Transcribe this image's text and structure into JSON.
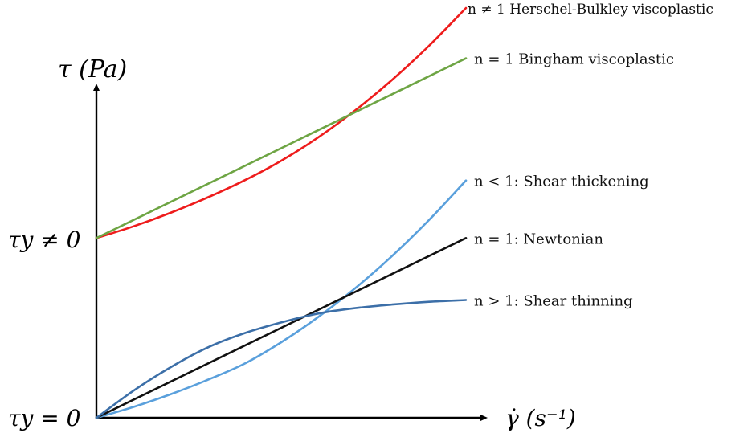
{
  "chart_data": {
    "type": "line",
    "title": "",
    "xlabel": "γ̇ (s⁻¹)",
    "ylabel": "τ (Pa)",
    "ytick_labels": [
      "τy ≠ 0",
      "τy = 0"
    ],
    "grid": false,
    "legend": "inline-right",
    "series": [
      {
        "name": "n ≠ 1 Herschel-Bulkley viscoplastic",
        "color": "#ee1c1c",
        "x": [
          0,
          1,
          2,
          3,
          4,
          5,
          6,
          7,
          8,
          9,
          10
        ],
        "y": [
          1.0,
          1.065,
          1.14,
          1.225,
          1.32,
          1.43,
          1.56,
          1.71,
          1.88,
          2.07,
          2.28
        ]
      },
      {
        "name": "n = 1 Bingham viscoplastic",
        "color": "#6ea544",
        "x": [
          0,
          10
        ],
        "y": [
          1.0,
          2.0
        ]
      },
      {
        "name": "n < 1: Shear thickening",
        "color": "#5aa0dc",
        "x": [
          0,
          1,
          2,
          3,
          4,
          5,
          6,
          7,
          8,
          9,
          10
        ],
        "y": [
          0,
          0.06,
          0.13,
          0.21,
          0.3,
          0.42,
          0.56,
          0.72,
          0.9,
          1.1,
          1.32
        ]
      },
      {
        "name": "n = 1: Newtonian",
        "color": "#111111",
        "x": [
          0,
          10
        ],
        "y": [
          0,
          1.0
        ]
      },
      {
        "name": "n > 1: Shear thinning",
        "color": "#3c6fa8",
        "x": [
          0,
          1,
          2,
          3,
          4,
          5,
          6,
          7,
          8,
          9,
          10
        ],
        "y": [
          0,
          0.15,
          0.28,
          0.39,
          0.47,
          0.53,
          0.58,
          0.61,
          0.63,
          0.645,
          0.655
        ]
      }
    ],
    "xlim": [
      0,
      10
    ],
    "ylim": [
      0,
      2.28
    ]
  }
}
